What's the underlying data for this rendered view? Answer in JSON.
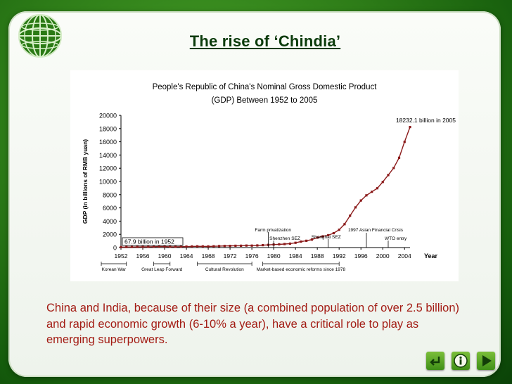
{
  "slide": {
    "title": "The rise of ‘Chindia’",
    "caption": "China and India, because of their size (a combined population of over 2.5 billion) and rapid economic growth (6-10% a year), have a critical role to play as emerging superpowers.",
    "icons": {
      "logo": "globe-icon",
      "back": "return-icon",
      "info": "info-icon",
      "next": "play-next-icon"
    },
    "colors": {
      "background": "#2e7d18",
      "title": "#0b3b0b",
      "caption": "#a31c14",
      "series": "#8b1a1a"
    }
  },
  "chart_data": {
    "type": "line",
    "title": "People's Republic of China's Nominal Gross Domestic Product (GDP) Between 1952 to 2005",
    "title_lines": [
      "People's Republic of China's Nominal Gross Domestic Product",
      "(GDP) Between 1952 to 2005"
    ],
    "xlabel": "Year",
    "ylabel": "GDP (in billions of RMB yuan)",
    "xlim": [
      1952,
      2005
    ],
    "ylim": [
      0,
      20000
    ],
    "x_ticks": [
      1952,
      1956,
      1960,
      1964,
      1968,
      1972,
      1976,
      1980,
      1984,
      1988,
      1992,
      1996,
      2000,
      2004
    ],
    "y_ticks": [
      0,
      2000,
      4000,
      6000,
      8000,
      10000,
      12000,
      14000,
      16000,
      18000,
      20000
    ],
    "grid": false,
    "series": [
      {
        "x": [
          1952,
          1953,
          1954,
          1955,
          1956,
          1957,
          1958,
          1959,
          1960,
          1961,
          1962,
          1963,
          1964,
          1965,
          1966,
          1967,
          1968,
          1969,
          1970,
          1971,
          1972,
          1973,
          1974,
          1975,
          1976,
          1977,
          1978,
          1979,
          1980,
          1981,
          1982,
          1983,
          1984,
          1985,
          1986,
          1987,
          1988,
          1989,
          1990,
          1991,
          1992,
          1993,
          1994,
          1995,
          1996,
          1997,
          1998,
          1999,
          2000,
          2001,
          2002,
          2003,
          2004,
          2005
        ],
        "values": [
          67.9,
          82.4,
          85.9,
          91.0,
          102.8,
          106.8,
          130.7,
          143.9,
          145.7,
          122.0,
          114.9,
          123.3,
          145.4,
          171.6,
          186.8,
          177.4,
          172.3,
          193.8,
          225.3,
          242.6,
          251.8,
          272.1,
          279.0,
          299.7,
          294.4,
          320.2,
          364.5,
          406.3,
          454.6,
          489.2,
          532.3,
          596.3,
          721.7,
          901.6,
          1027.5,
          1205.9,
          1504.3,
          1699.2,
          1866.8,
          2178.2,
          2692.3,
          3533.4,
          4819.8,
          6079.4,
          7117.7,
          7897.3,
          8440.2,
          8967.7,
          9921.5,
          10965.5,
          12033.3,
          13582.3,
          15987.8,
          18232.1
        ]
      }
    ],
    "annotations": {
      "start_label": "67.9 billion in 1952",
      "end_label": "18232.1 billion in 2005",
      "events": [
        {
          "label": "Farm privatization",
          "year": 1979
        },
        {
          "label": "Shenzhen SEZ",
          "year": 1980
        },
        {
          "label": "Shanghai SEZ",
          "year": 1990
        },
        {
          "label": "1997 Asian Financial Crisis",
          "year": 1997
        },
        {
          "label": "WTO entry",
          "year": 2001
        }
      ],
      "periods": [
        {
          "label": "Korean War",
          "start": 1952,
          "end": 1953
        },
        {
          "label": "Great Leap Forward",
          "start": 1958,
          "end": 1961
        },
        {
          "label": "Cultural Revolution",
          "start": 1966,
          "end": 1976
        },
        {
          "label": "Market-based economic reforms since 1978",
          "start": 1978,
          "end": 1992
        }
      ]
    }
  }
}
